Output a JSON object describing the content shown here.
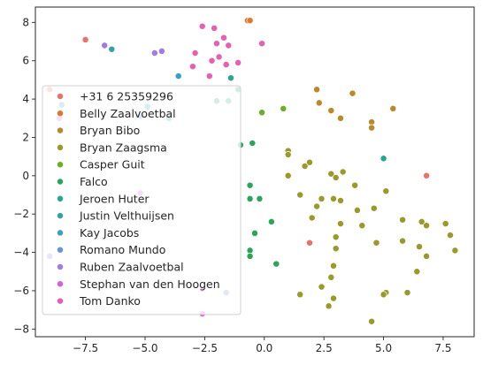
{
  "chart_data": {
    "type": "scatter",
    "title": "",
    "xlabel": "",
    "ylabel": "",
    "xlim": [
      -9.6,
      8.8
    ],
    "ylim": [
      -8.4,
      8.8
    ],
    "xticks": [
      -7.5,
      -5.0,
      -2.5,
      0.0,
      2.5,
      5.0,
      7.5
    ],
    "xtick_labels": [
      "−7.5",
      "−5.0",
      "−2.5",
      "0.0",
      "2.5",
      "5.0",
      "7.5"
    ],
    "yticks": [
      -8,
      -6,
      -4,
      -2,
      0,
      2,
      4,
      6,
      8
    ],
    "ytick_labels": [
      "−8",
      "−6",
      "−4",
      "−2",
      "0",
      "2",
      "4",
      "6",
      "8"
    ],
    "grid": false,
    "legend_position": "lower-left",
    "series": [
      {
        "name": "+31 6 25359296",
        "color": "#e8736b",
        "points": [
          [
            -7.5,
            7.1
          ],
          [
            6.8,
            0.0
          ],
          [
            1.9,
            -3.5
          ],
          [
            -9.0,
            4.5
          ]
        ]
      },
      {
        "name": "Belly Zaalvoetbal",
        "color": "#e0772e",
        "points": [
          [
            -0.7,
            8.1
          ],
          [
            -0.6,
            8.1
          ]
        ]
      },
      {
        "name": "Bryan Bibo",
        "color": "#b98a2b",
        "points": [
          [
            2.2,
            4.5
          ],
          [
            2.3,
            3.8
          ],
          [
            3.7,
            4.3
          ],
          [
            2.8,
            3.4
          ],
          [
            3.2,
            3.0
          ],
          [
            4.5,
            2.8
          ],
          [
            4.5,
            2.5
          ],
          [
            5.4,
            3.5
          ]
        ]
      },
      {
        "name": "Bryan Zaagsma",
        "color": "#9a9a2a",
        "points": [
          [
            1.0,
            1.3
          ],
          [
            1.0,
            1.1
          ],
          [
            1.9,
            0.7
          ],
          [
            1.7,
            0.5
          ],
          [
            2.8,
            0.1
          ],
          [
            3.3,
            0.2
          ],
          [
            1.0,
            0.0
          ],
          [
            3.0,
            -0.1
          ],
          [
            3.8,
            -0.5
          ],
          [
            5.1,
            -0.8
          ],
          [
            1.5,
            -1.0
          ],
          [
            2.4,
            -1.2
          ],
          [
            2.9,
            -1.2
          ],
          [
            3.2,
            -1.3
          ],
          [
            2.2,
            -1.6
          ],
          [
            3.9,
            -1.8
          ],
          [
            4.6,
            -1.7
          ],
          [
            2.0,
            -2.2
          ],
          [
            3.2,
            -2.5
          ],
          [
            4.1,
            -2.6
          ],
          [
            5.8,
            -2.3
          ],
          [
            6.6,
            -2.4
          ],
          [
            6.8,
            -2.6
          ],
          [
            7.6,
            -2.5
          ],
          [
            3.0,
            -3.2
          ],
          [
            4.7,
            -3.5
          ],
          [
            5.8,
            -3.4
          ],
          [
            7.8,
            -3.1
          ],
          [
            3.0,
            -3.8
          ],
          [
            6.5,
            -3.7
          ],
          [
            8.0,
            -3.9
          ],
          [
            6.8,
            -4.2
          ],
          [
            2.9,
            -4.7
          ],
          [
            2.8,
            -5.3
          ],
          [
            6.4,
            -5.0
          ],
          [
            2.4,
            -5.8
          ],
          [
            1.5,
            -6.2
          ],
          [
            2.9,
            -6.4
          ],
          [
            5.1,
            -6.1
          ],
          [
            5.0,
            -6.2
          ],
          [
            6.0,
            -6.1
          ],
          [
            2.7,
            -6.8
          ],
          [
            4.5,
            -7.6
          ]
        ]
      },
      {
        "name": "Casper Guit",
        "color": "#6aae2a",
        "points": [
          [
            -0.1,
            3.3
          ],
          [
            0.8,
            3.5
          ]
        ]
      },
      {
        "name": "Falco",
        "color": "#2aa55a",
        "points": [
          [
            -1.0,
            1.6
          ],
          [
            -0.5,
            1.7
          ],
          [
            -0.6,
            -0.5
          ],
          [
            -0.6,
            -1.2
          ],
          [
            -0.2,
            -1.2
          ],
          [
            0.3,
            -2.4
          ],
          [
            -0.4,
            -3.0
          ],
          [
            -0.6,
            -3.9
          ],
          [
            -0.6,
            -4.2
          ],
          [
            0.5,
            -4.6
          ]
        ]
      },
      {
        "name": "Jeroen Huter",
        "color": "#2aa58e",
        "points": [
          [
            -1.4,
            5.1
          ],
          [
            -1.1,
            4.5
          ],
          [
            5.0,
            0.9
          ],
          [
            -2.0,
            3.9
          ],
          [
            -1.5,
            3.9
          ]
        ]
      },
      {
        "name": "Justin Velthuijsen",
        "color": "#33a3a3",
        "points": [
          [
            -6.4,
            6.6
          ],
          [
            -4.9,
            3.6
          ],
          [
            -4.0,
            3.0
          ]
        ]
      },
      {
        "name": "Kay Jacobs",
        "color": "#3aa0c8",
        "points": [
          [
            -3.6,
            5.2
          ],
          [
            -8.5,
            3.7
          ]
        ]
      },
      {
        "name": "Romano Mundo",
        "color": "#6a93e0",
        "points": [
          [
            -5.2,
            3.1
          ],
          [
            -1.6,
            -6.1
          ]
        ]
      },
      {
        "name": "Ruben Zaalvoetbal",
        "color": "#a17ae6",
        "points": [
          [
            -6.7,
            6.8
          ],
          [
            -4.6,
            6.4
          ],
          [
            -4.3,
            6.5
          ],
          [
            -9.0,
            -4.2
          ]
        ]
      },
      {
        "name": "Stephan van den Hoogen",
        "color": "#d75fe0",
        "points": [
          [
            -8.6,
            3.0
          ],
          [
            -5.2,
            -0.9
          ],
          [
            -2.6,
            -5.9
          ],
          [
            -2.6,
            -7.2
          ]
        ]
      },
      {
        "name": "Tom Danko",
        "color": "#e85fb2",
        "points": [
          [
            -2.6,
            7.8
          ],
          [
            -2.1,
            7.7
          ],
          [
            -1.7,
            7.2
          ],
          [
            -0.1,
            6.9
          ],
          [
            -2.0,
            6.9
          ],
          [
            -1.5,
            6.8
          ],
          [
            -2.9,
            6.4
          ],
          [
            -2.2,
            6.0
          ],
          [
            -1.9,
            6.2
          ],
          [
            -1.6,
            5.8
          ],
          [
            -1.1,
            5.9
          ],
          [
            -3.0,
            5.7
          ],
          [
            -2.3,
            5.2
          ]
        ]
      }
    ]
  }
}
